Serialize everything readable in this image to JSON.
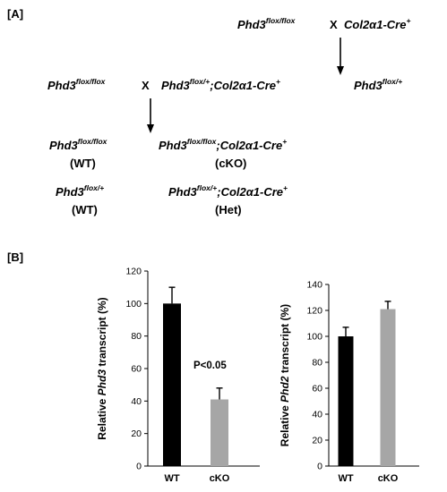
{
  "panel_a": {
    "label": "[A]",
    "cross_parents": [
      {
        "base": "Phd3",
        "sup": "flox/flox"
      },
      {
        "base": "Col2α1-Cre",
        "sup": "+"
      }
    ],
    "cross_symbol": "X",
    "f1_parent": {
      "base": "Phd3",
      "sup": "flox/flox"
    },
    "f1_offspring": [
      {
        "base": "Phd3",
        "sup": "flox/+"
      },
      {
        "base": ";Col2α1-Cre",
        "sup": "+"
      }
    ],
    "f1_side": {
      "base": "Phd3",
      "sup": "flox/+"
    },
    "progeny": [
      {
        "genotype": [
          {
            "base": "Phd3",
            "sup": "flox/flox"
          }
        ],
        "label": "(WT)"
      },
      {
        "genotype": [
          {
            "base": "Phd3",
            "sup": "flox/flox"
          },
          {
            "base": ";Col2α1-Cre",
            "sup": "+"
          }
        ],
        "label": "(cKO)"
      },
      {
        "genotype": [
          {
            "base": "Phd3",
            "sup": "flox/+"
          }
        ],
        "label": "(WT)"
      },
      {
        "genotype": [
          {
            "base": "Phd3",
            "sup": "flox/+"
          },
          {
            "base": ";Col2α1-Cre",
            "sup": "+"
          }
        ],
        "label": "(Het)"
      }
    ]
  },
  "panel_b": {
    "label": "[B]",
    "annotation": "P<0.05"
  },
  "chart_data": [
    {
      "type": "bar",
      "title": "",
      "ylabel_parts": [
        "Relative ",
        "Phd3",
        " transcript (%)"
      ],
      "categories": [
        "WT",
        "cKO"
      ],
      "values": [
        100,
        41
      ],
      "errors": [
        10,
        7
      ],
      "colors": [
        "#000000",
        "#a6a6a6"
      ],
      "ylim": [
        0,
        120
      ],
      "yticks": [
        0,
        20,
        40,
        60,
        80,
        100,
        120
      ],
      "grid": false
    },
    {
      "type": "bar",
      "title": "",
      "ylabel_parts": [
        "Relative ",
        "Phd2",
        " transcript (%)"
      ],
      "categories": [
        "WT",
        "cKO"
      ],
      "values": [
        100,
        121
      ],
      "errors": [
        7,
        6
      ],
      "colors": [
        "#000000",
        "#a6a6a6"
      ],
      "ylim": [
        0,
        140
      ],
      "yticks": [
        0,
        20,
        40,
        60,
        80,
        100,
        120,
        140
      ],
      "grid": false
    }
  ]
}
